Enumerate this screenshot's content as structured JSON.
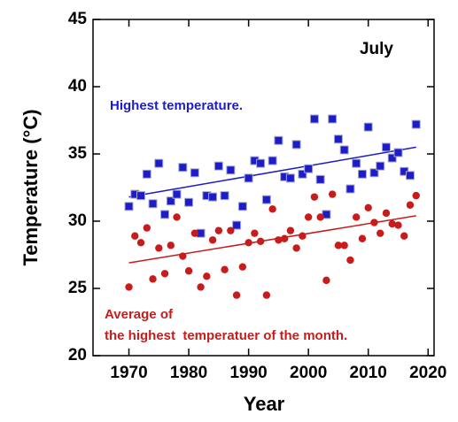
{
  "chart_data": {
    "type": "scatter",
    "x_label": "Year",
    "y_label": "Temperature (°C)",
    "xlim": [
      1964,
      2021
    ],
    "ylim": [
      20,
      45
    ],
    "xticks": [
      1970,
      1980,
      1990,
      2000,
      2010,
      2020
    ],
    "yticks": [
      20,
      25,
      30,
      35,
      40,
      45
    ],
    "x": [
      1970,
      1971,
      1972,
      1973,
      1974,
      1975,
      1976,
      1977,
      1978,
      1979,
      1980,
      1981,
      1982,
      1983,
      1984,
      1985,
      1986,
      1987,
      1988,
      1989,
      1990,
      1991,
      1992,
      1993,
      1994,
      1995,
      1996,
      1997,
      1998,
      1999,
      2000,
      2001,
      2002,
      2003,
      2004,
      2005,
      2006,
      2007,
      2008,
      2009,
      2010,
      2011,
      2012,
      2013,
      2014,
      2015,
      2016,
      2017,
      2018
    ],
    "series": [
      {
        "name": "Highest temperature.",
        "color": "#1c1cc8",
        "marker": "square",
        "values": [
          31.1,
          32.0,
          31.9,
          33.5,
          31.3,
          34.3,
          30.5,
          31.5,
          32.0,
          34.0,
          31.4,
          33.6,
          29.1,
          31.9,
          31.8,
          34.1,
          31.9,
          33.8,
          29.7,
          31.1,
          33.2,
          34.5,
          34.3,
          31.6,
          34.5,
          36.0,
          33.3,
          33.2,
          35.7,
          33.5,
          33.9,
          37.6,
          33.1,
          30.5,
          37.6,
          36.1,
          35.3,
          32.4,
          34.3,
          33.5,
          37.0,
          33.6,
          34.1,
          35.5,
          34.7,
          35.1,
          33.7,
          33.4,
          37.2
        ],
        "trend": {
          "x": [
            1970,
            2018
          ],
          "values": [
            31.8,
            35.5
          ]
        }
      },
      {
        "name": "Average of\nthe highest  temperatuer of the month.",
        "color": "#c81c1c",
        "marker": "circle",
        "values": [
          25.1,
          28.9,
          28.4,
          29.5,
          25.7,
          28.0,
          26.1,
          28.2,
          30.3,
          27.4,
          26.3,
          29.1,
          25.1,
          25.9,
          28.6,
          29.3,
          26.4,
          29.3,
          24.5,
          26.6,
          28.4,
          29.1,
          28.5,
          24.5,
          30.9,
          28.6,
          28.7,
          29.3,
          28.0,
          28.9,
          30.3,
          31.8,
          30.3,
          25.6,
          32.0,
          28.2,
          28.2,
          27.1,
          30.3,
          28.7,
          31.0,
          29.9,
          29.1,
          30.6,
          29.8,
          29.7,
          28.9,
          31.2,
          31.9
        ],
        "trend": {
          "x": [
            1970,
            2018
          ],
          "values": [
            26.9,
            30.4
          ]
        }
      }
    ],
    "annotations": [
      "July"
    ]
  }
}
